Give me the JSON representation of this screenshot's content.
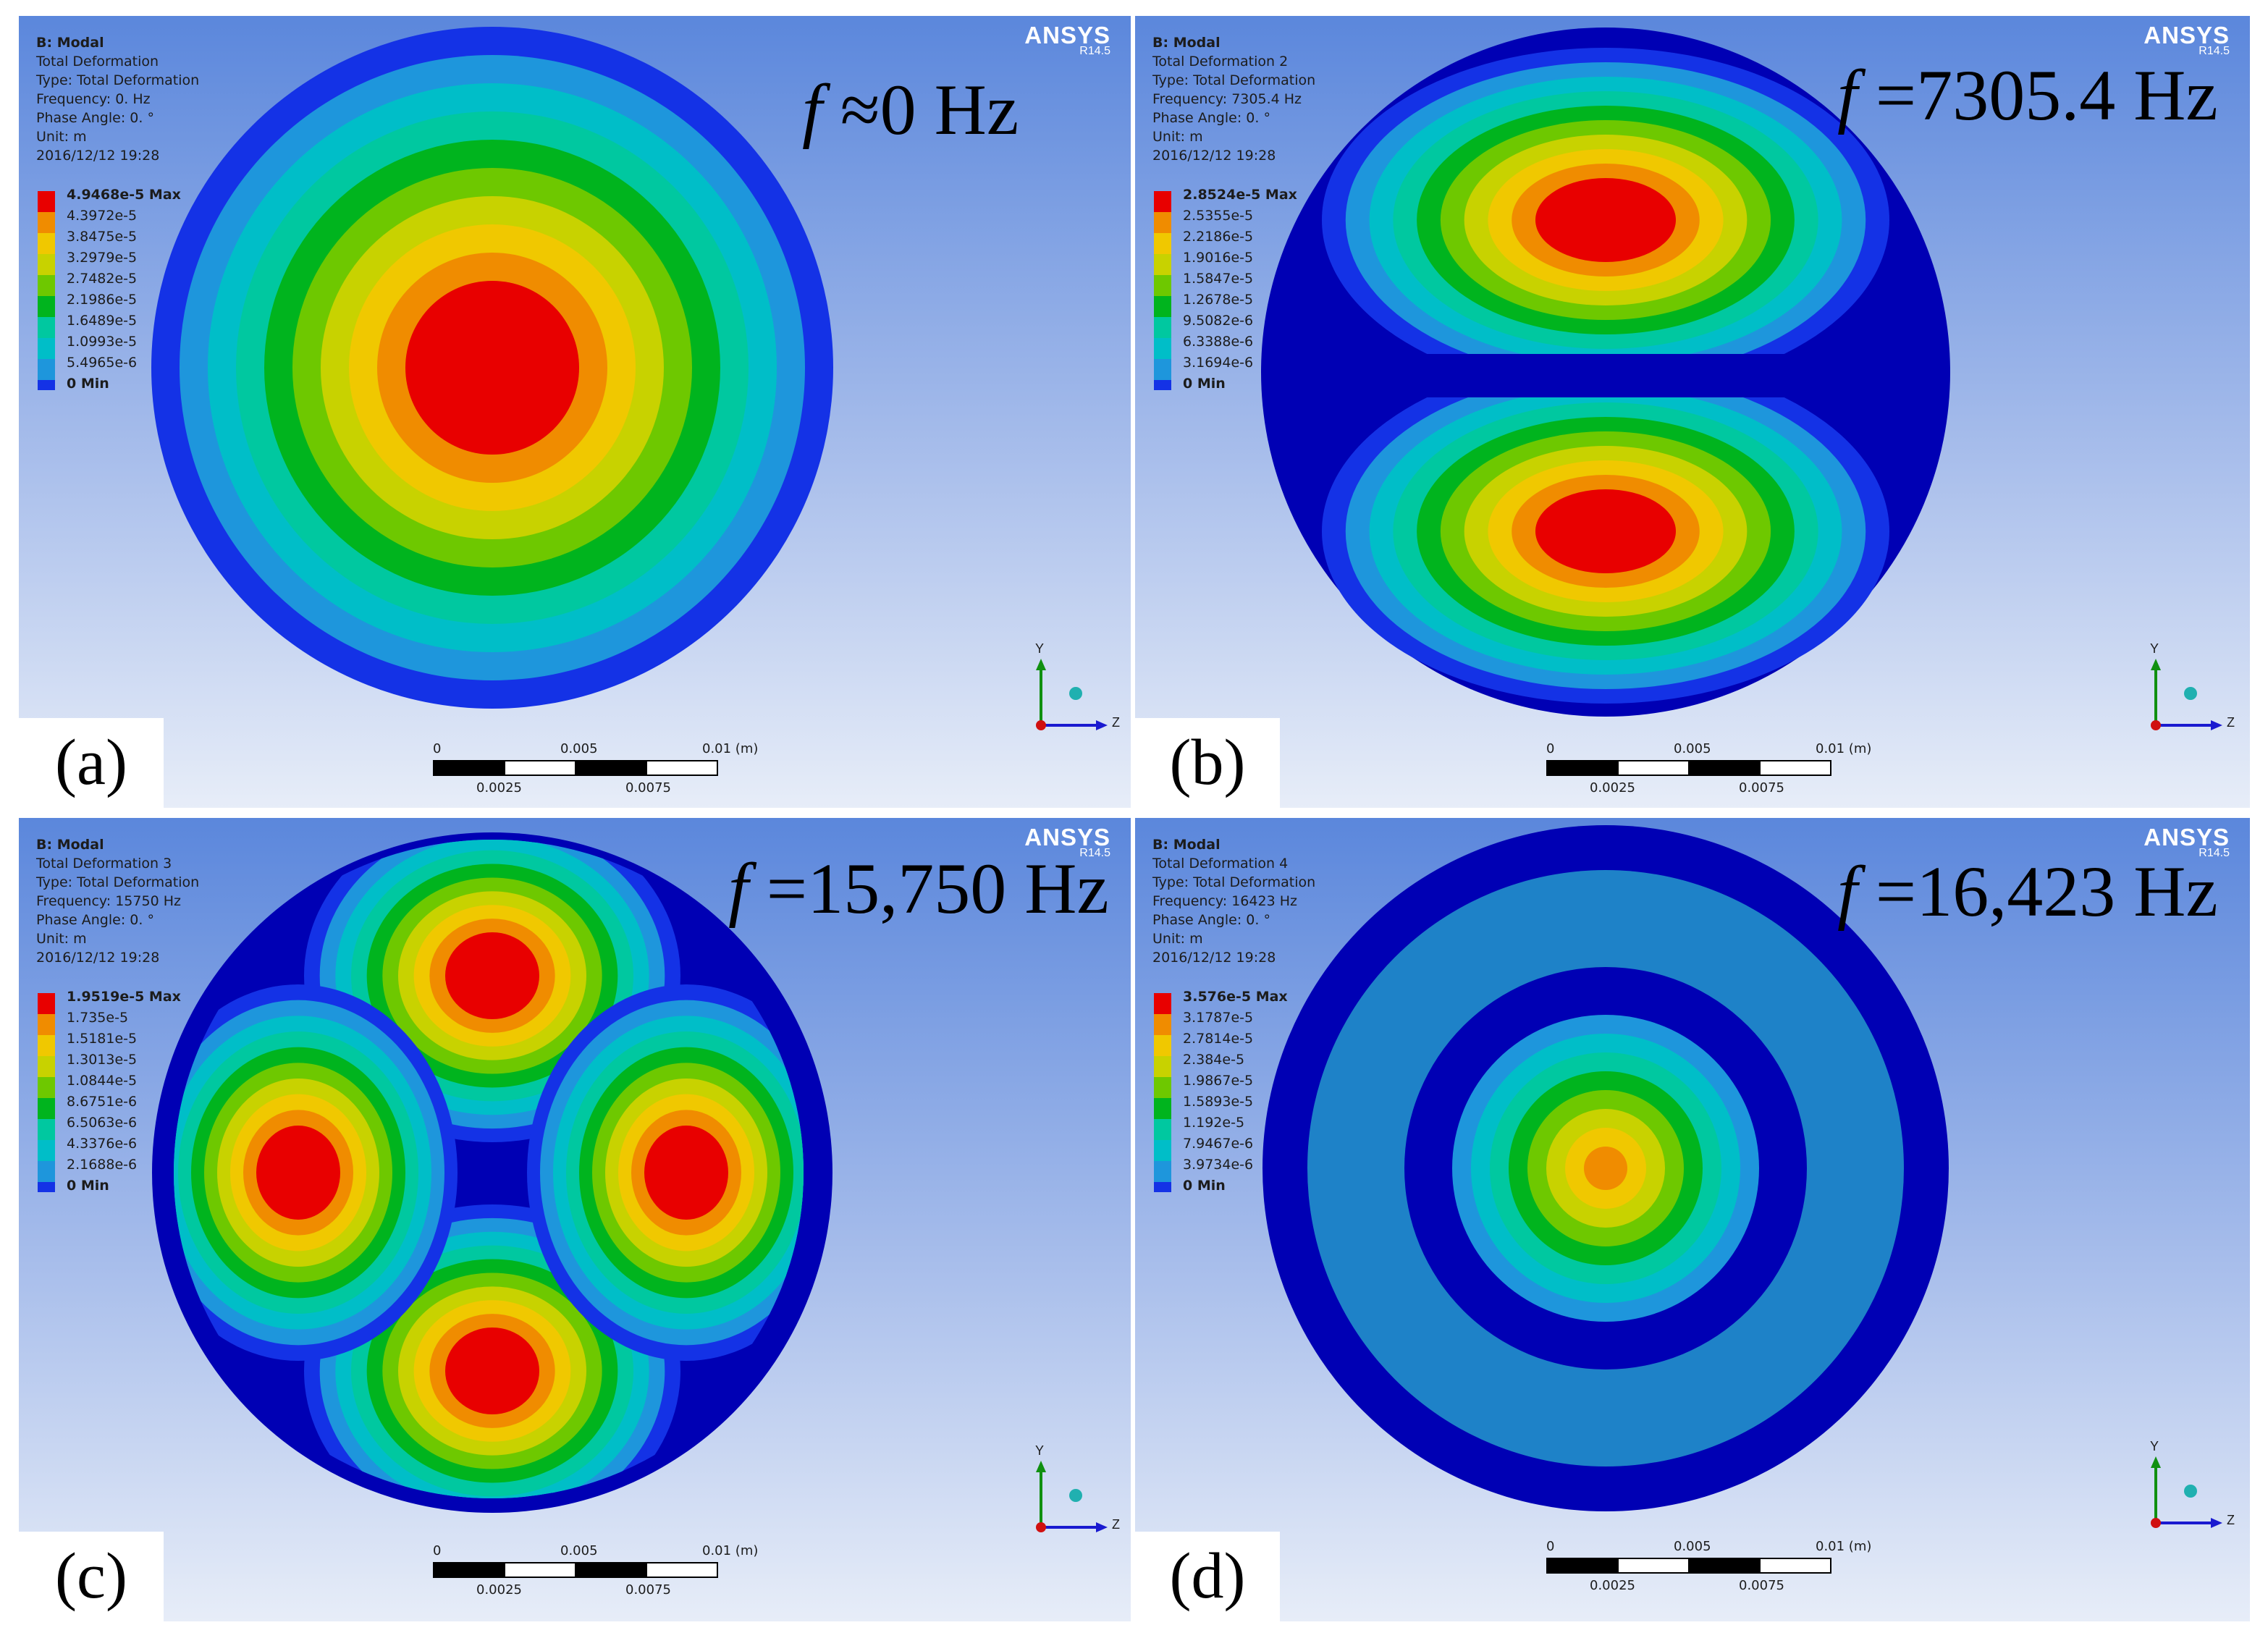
{
  "brand": {
    "name": "ANSYS",
    "version": "R14.5"
  },
  "header_common": {
    "system": "B: Modal",
    "type": "Type: Total Deformation",
    "phase": "Phase Angle: 0. °",
    "unit": "Unit: m",
    "date": "2016/12/12 19:28"
  },
  "legend_colors": [
    "#e80000",
    "#f08c00",
    "#f0c800",
    "#c8d200",
    "#6ec800",
    "#00b41e",
    "#00c8a0",
    "#00bec8",
    "#1e96dc",
    "#1432e6",
    "#0000b4"
  ],
  "scale_bar": {
    "top": [
      "0",
      "0.005",
      "0.01 (m)"
    ],
    "bottom": [
      "0.0025",
      "0.0075"
    ]
  },
  "triad": {
    "y": "Y",
    "z": "Z"
  },
  "panels": [
    {
      "tag": "(a)",
      "title": "Total Deformation",
      "frequency": "Frequency: 0. Hz",
      "freq_symbol": "f",
      "freq_text": " ≈0 Hz",
      "legend": [
        "4.9468e-5 Max",
        "4.3972e-5",
        "3.8475e-5",
        "3.2979e-5",
        "2.7482e-5",
        "2.1986e-5",
        "1.6489e-5",
        "1.0993e-5",
        "5.4965e-6",
        "0 Min"
      ]
    },
    {
      "tag": "(b)",
      "title": "Total Deformation 2",
      "frequency": "Frequency: 7305.4 Hz",
      "freq_symbol": "f",
      "freq_text": " =7305.4 Hz",
      "legend": [
        "2.8524e-5 Max",
        "2.5355e-5",
        "2.2186e-5",
        "1.9016e-5",
        "1.5847e-5",
        "1.2678e-5",
        "9.5082e-6",
        "6.3388e-6",
        "3.1694e-6",
        "0 Min"
      ]
    },
    {
      "tag": "(c)",
      "title": "Total Deformation 3",
      "frequency": "Frequency: 15750 Hz",
      "freq_symbol": "f",
      "freq_text": " =15,750 Hz",
      "legend": [
        "1.9519e-5 Max",
        "1.735e-5",
        "1.5181e-5",
        "1.3013e-5",
        "1.0844e-5",
        "8.6751e-6",
        "6.5063e-6",
        "4.3376e-6",
        "2.1688e-6",
        "0 Min"
      ]
    },
    {
      "tag": "(d)",
      "title": "Total Deformation 4",
      "frequency": "Frequency: 16423 Hz",
      "freq_symbol": "f",
      "freq_text": " =16,423 Hz",
      "legend": [
        "3.576e-5 Max",
        "3.1787e-5",
        "2.7814e-5",
        "2.384e-5",
        "1.9867e-5",
        "1.5893e-5",
        "1.192e-5",
        "7.9467e-6",
        "3.9734e-6",
        "0 Min"
      ]
    }
  ]
}
